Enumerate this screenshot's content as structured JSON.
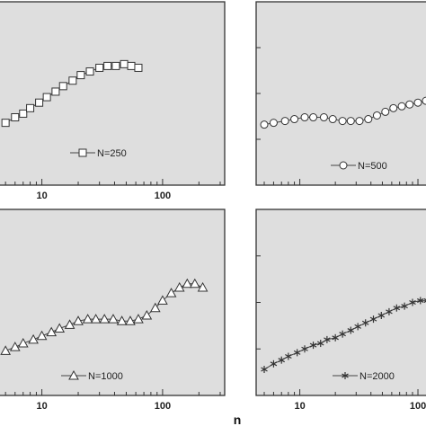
{
  "xlabel": "n",
  "chart_data": [
    {
      "type": "line",
      "name": "N=250",
      "marker": "square",
      "xscale": "log",
      "xlim": [
        4.5,
        300
      ],
      "ylim": [
        0,
        1
      ],
      "grid": false,
      "legend": "center",
      "xticks": [
        10,
        100
      ],
      "tick_labels": [
        "10",
        "100"
      ],
      "x": [
        5,
        6,
        7,
        8,
        9.5,
        11,
        13,
        15,
        18,
        21,
        25,
        30,
        35,
        41,
        48,
        55,
        63
      ],
      "values": [
        0.34,
        0.37,
        0.39,
        0.42,
        0.45,
        0.48,
        0.51,
        0.54,
        0.57,
        0.6,
        0.62,
        0.64,
        0.65,
        0.65,
        0.66,
        0.65,
        0.64
      ]
    },
    {
      "type": "line",
      "name": "N=500",
      "marker": "circle",
      "xscale": "log",
      "xlim": [
        4.5,
        130
      ],
      "ylim": [
        0,
        1
      ],
      "grid": false,
      "legend": "bottom-right",
      "xticks": [],
      "tick_labels": [],
      "x": [
        5,
        6,
        7.5,
        9,
        11,
        13,
        16,
        19,
        23,
        27,
        32,
        38,
        45,
        53,
        62,
        73,
        85,
        100,
        117,
        130
      ],
      "values": [
        0.33,
        0.34,
        0.35,
        0.36,
        0.37,
        0.37,
        0.37,
        0.36,
        0.35,
        0.35,
        0.35,
        0.36,
        0.38,
        0.4,
        0.42,
        0.43,
        0.44,
        0.45,
        0.46,
        0.46
      ]
    },
    {
      "type": "line",
      "name": "N=1000",
      "marker": "triangle",
      "xscale": "log",
      "xlim": [
        4.5,
        300
      ],
      "ylim": [
        0,
        1
      ],
      "grid": false,
      "legend": "bottom-center",
      "xticks": [
        10,
        100
      ],
      "tick_labels": [
        "10",
        "100"
      ],
      "x": [
        5,
        6,
        7,
        8.5,
        10,
        12,
        14,
        17,
        20,
        24,
        28,
        33,
        39,
        46,
        54,
        63,
        74,
        87,
        100,
        118,
        138,
        160,
        185,
        215
      ],
      "values": [
        0.24,
        0.26,
        0.28,
        0.3,
        0.32,
        0.34,
        0.36,
        0.38,
        0.4,
        0.41,
        0.41,
        0.41,
        0.41,
        0.4,
        0.4,
        0.41,
        0.43,
        0.47,
        0.51,
        0.55,
        0.58,
        0.6,
        0.6,
        0.58
      ]
    },
    {
      "type": "line",
      "name": "N=2000",
      "marker": "star",
      "xscale": "log",
      "xlim": [
        4.5,
        130
      ],
      "ylim": [
        0,
        1
      ],
      "grid": false,
      "legend": "bottom-right",
      "xticks": [
        10,
        100
      ],
      "tick_labels": [
        "10",
        "100"
      ],
      "x": [
        5,
        6,
        7,
        8,
        9.5,
        11,
        13,
        15,
        17,
        20,
        23,
        27,
        31,
        36,
        42,
        49,
        57,
        66,
        77,
        90,
        105,
        120,
        130
      ],
      "values": [
        0.14,
        0.17,
        0.19,
        0.21,
        0.23,
        0.25,
        0.27,
        0.28,
        0.3,
        0.31,
        0.33,
        0.35,
        0.37,
        0.39,
        0.41,
        0.43,
        0.45,
        0.47,
        0.48,
        0.5,
        0.51,
        0.51,
        0.51
      ]
    }
  ]
}
